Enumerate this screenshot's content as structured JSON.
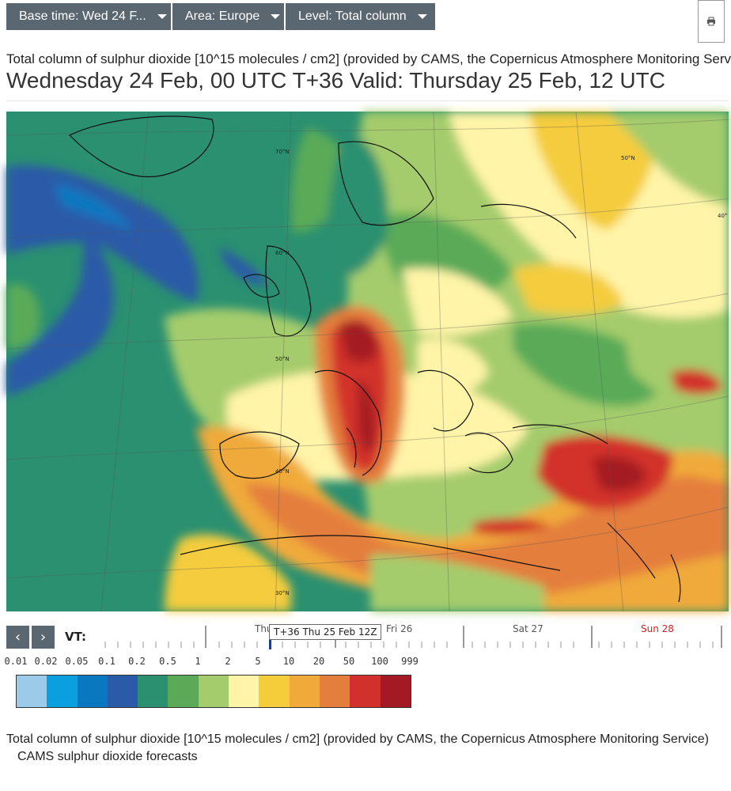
{
  "toolbar": {
    "base_time": "Base time: Wed 24 F...",
    "area": "Area: Europe",
    "level": "Level: Total column"
  },
  "icons": {
    "print": "print-icon",
    "prev": "chevron-left-icon",
    "next": "chevron-right-icon",
    "caret": "caret-down-icon"
  },
  "header": {
    "subtitle": "Total column of sulphur dioxide [10^15 molecules / cm2] (provided by CAMS, the Copernicus Atmosphere Monitoring Serv",
    "title": "Wednesday 24 Feb, 00 UTC T+36 Valid: Thursday 25 Feb, 12 UTC"
  },
  "map": {
    "lat_labels": [
      "70°N",
      "60°N",
      "50°N",
      "40°N",
      "30°N",
      "50°N",
      "40°"
    ]
  },
  "timeline": {
    "vt_label": "VT:",
    "current": "T+36 Thu 25 Feb 12Z",
    "day_thu": "Thu",
    "day_fri": "Fri 26",
    "day_sat": "Sat 27",
    "day_sun": "Sun 28",
    "sun_color": "#cc2222"
  },
  "legend": {
    "labels": [
      "0.01",
      "0.02",
      "0.05",
      "0.1",
      "0.2",
      "0.5",
      "1",
      "2",
      "5",
      "10",
      "20",
      "50",
      "100",
      "999"
    ],
    "colors": [
      "#9ccbea",
      "#0aa0e0",
      "#0a78c0",
      "#2a5aa8",
      "#2a9070",
      "#5aaa58",
      "#a4cc6c",
      "#fff4a8",
      "#f4cc3c",
      "#f0aa3a",
      "#e47e3c",
      "#d2302c",
      "#a41a24"
    ]
  },
  "footer": {
    "caption": "Total column of sulphur dioxide [10^15 molecules / cm2] (provided by CAMS, the Copernicus Atmosphere Monitoring Service)",
    "product": "CAMS sulphur dioxide forecasts"
  }
}
